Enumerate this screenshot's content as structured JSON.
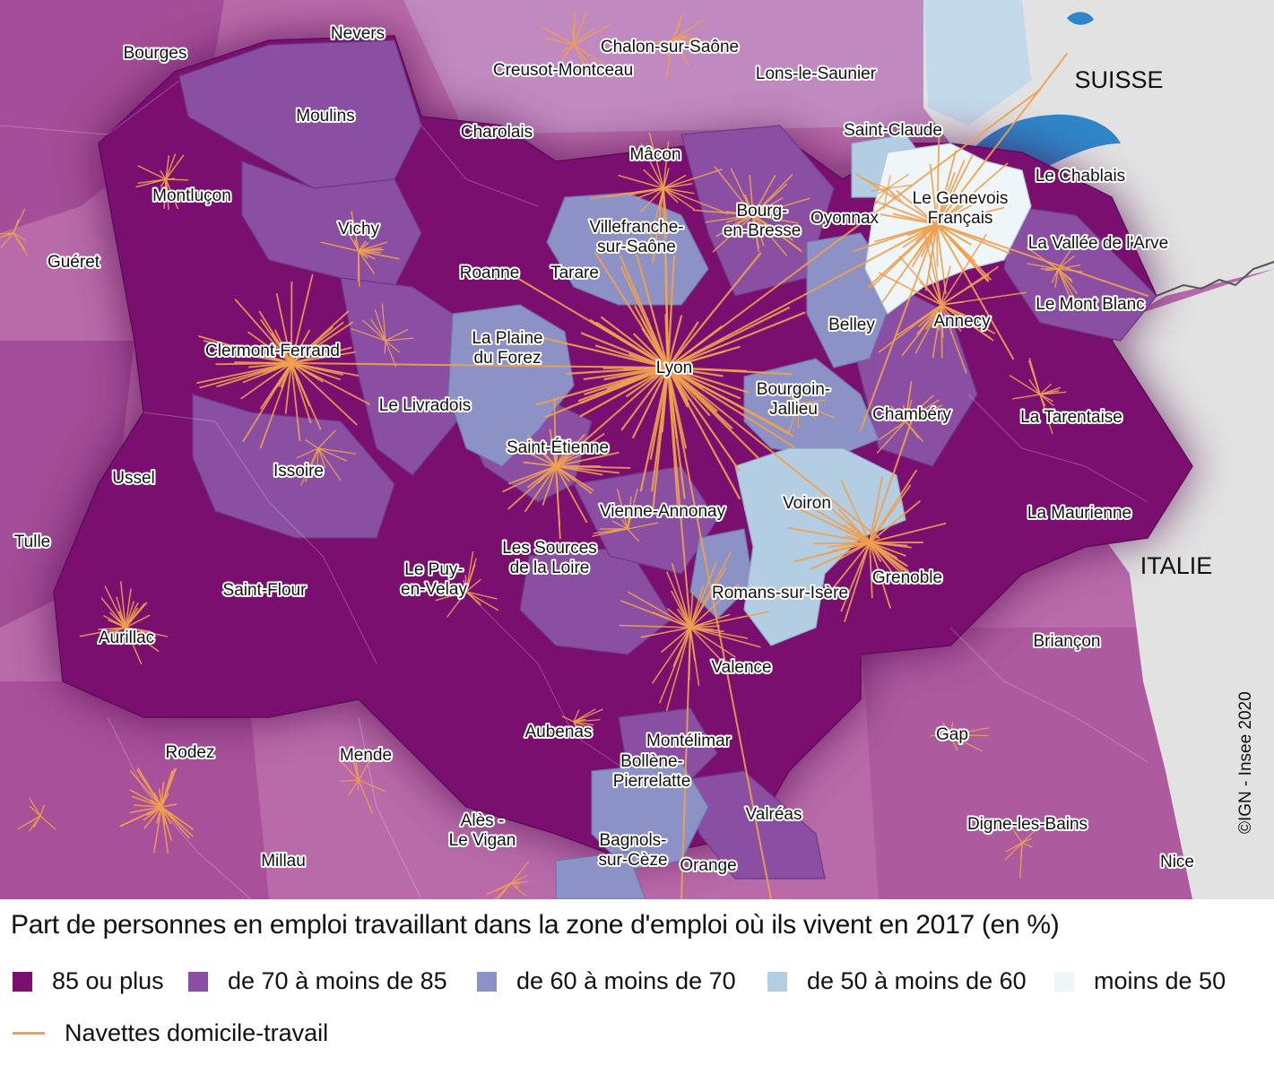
{
  "map": {
    "countries": [
      "SUISSE",
      "ITALIE"
    ],
    "credit": "©IGN - Insee 2020",
    "flow_color": "#f0a050",
    "cities": [
      {
        "name": "Bourges",
        "lines": [
          "Bourges"
        ]
      },
      {
        "name": "Nevers",
        "lines": [
          "Nevers"
        ]
      },
      {
        "name": "Chalon-sur-Saône",
        "lines": [
          "Chalon-sur-Saône"
        ]
      },
      {
        "name": "Creusot-Montceau",
        "lines": [
          "Creusot-Montceau"
        ]
      },
      {
        "name": "Lons-le-Saunier",
        "lines": [
          "Lons-le-Saunier"
        ]
      },
      {
        "name": "Moulins",
        "lines": [
          "Moulins"
        ]
      },
      {
        "name": "Charolais",
        "lines": [
          "Charolais"
        ]
      },
      {
        "name": "Saint-Claude",
        "lines": [
          "Saint-Claude"
        ]
      },
      {
        "name": "Mâcon",
        "lines": [
          "Mâcon"
        ]
      },
      {
        "name": "Le Chablais",
        "lines": [
          "Le Chablais"
        ]
      },
      {
        "name": "Montluçon",
        "lines": [
          "Montluçon"
        ]
      },
      {
        "name": "Bourg-en-Bresse",
        "lines": [
          "Bourg-",
          "en-Bresse"
        ]
      },
      {
        "name": "Oyonnax",
        "lines": [
          "Oyonnax"
        ]
      },
      {
        "name": "Le Genevois Français",
        "lines": [
          "Le Genevois",
          "Français"
        ]
      },
      {
        "name": "Vichy",
        "lines": [
          "Vichy"
        ]
      },
      {
        "name": "Villefranche-sur-Saône",
        "lines": [
          "Villefranche-",
          "sur-Saône"
        ]
      },
      {
        "name": "La Vallée de l'Arve",
        "lines": [
          "La Vallée de l'Arve"
        ]
      },
      {
        "name": "Guéret",
        "lines": [
          "Guéret"
        ]
      },
      {
        "name": "Roanne",
        "lines": [
          "Roanne"
        ]
      },
      {
        "name": "Tarare",
        "lines": [
          "Tarare"
        ]
      },
      {
        "name": "Le Mont Blanc",
        "lines": [
          "Le Mont Blanc"
        ]
      },
      {
        "name": "Belley",
        "lines": [
          "Belley"
        ]
      },
      {
        "name": "Annecy",
        "lines": [
          "Annecy"
        ]
      },
      {
        "name": "Clermont-Ferrand",
        "lines": [
          "Clermont-Ferrand"
        ]
      },
      {
        "name": "La Plaine du Forez",
        "lines": [
          "La Plaine",
          "du Forez"
        ]
      },
      {
        "name": "Lyon",
        "lines": [
          "Lyon"
        ]
      },
      {
        "name": "Bourgoin-Jallieu",
        "lines": [
          "Bourgoin-",
          "Jallieu"
        ]
      },
      {
        "name": "Le Livradois",
        "lines": [
          "Le Livradois"
        ]
      },
      {
        "name": "Chambéry",
        "lines": [
          "Chambéry"
        ]
      },
      {
        "name": "La Tarentaise",
        "lines": [
          "La Tarentaise"
        ]
      },
      {
        "name": "Saint-Étienne",
        "lines": [
          "Saint-Étienne"
        ]
      },
      {
        "name": "Issoire",
        "lines": [
          "Issoire"
        ]
      },
      {
        "name": "Ussel",
        "lines": [
          "Ussel"
        ]
      },
      {
        "name": "Voiron",
        "lines": [
          "Voiron"
        ]
      },
      {
        "name": "Vienne-Annonay",
        "lines": [
          "Vienne-Annonay"
        ]
      },
      {
        "name": "La Maurienne",
        "lines": [
          "La Maurienne"
        ]
      },
      {
        "name": "Tulle",
        "lines": [
          "Tulle"
        ]
      },
      {
        "name": "Les Sources de la Loire",
        "lines": [
          "Les Sources",
          "de la Loire"
        ]
      },
      {
        "name": "Le Puy-en-Velay",
        "lines": [
          "Le Puy-",
          "en-Velay"
        ]
      },
      {
        "name": "Grenoble",
        "lines": [
          "Grenoble"
        ]
      },
      {
        "name": "Saint-Flour",
        "lines": [
          "Saint-Flour"
        ]
      },
      {
        "name": "Romans-sur-Isère",
        "lines": [
          "Romans-sur-Isère"
        ]
      },
      {
        "name": "Aurillac",
        "lines": [
          "Aurillac"
        ]
      },
      {
        "name": "Briançon",
        "lines": [
          "Briançon"
        ]
      },
      {
        "name": "Valence",
        "lines": [
          "Valence"
        ]
      },
      {
        "name": "Aubenas",
        "lines": [
          "Aubenas"
        ]
      },
      {
        "name": "Gap",
        "lines": [
          "Gap"
        ]
      },
      {
        "name": "Montélimar",
        "lines": [
          "Montélimar"
        ]
      },
      {
        "name": "Rodez",
        "lines": [
          "Rodez"
        ]
      },
      {
        "name": "Mende",
        "lines": [
          "Mende"
        ]
      },
      {
        "name": "Bollène-Pierrelatte",
        "lines": [
          "Bollène-",
          "Pierrelatte"
        ]
      },
      {
        "name": "Valréas",
        "lines": [
          "Valréas"
        ]
      },
      {
        "name": "Digne-les-Bains",
        "lines": [
          "Digne-les-Bains"
        ]
      },
      {
        "name": "Alès - Le Vigan",
        "lines": [
          "Alès -",
          "Le Vigan"
        ]
      },
      {
        "name": "Bagnols-sur-Cèze",
        "lines": [
          "Bagnols-",
          "sur-Cèze"
        ]
      },
      {
        "name": "Orange",
        "lines": [
          "Orange"
        ]
      },
      {
        "name": "Millau",
        "lines": [
          "Millau"
        ]
      },
      {
        "name": "Nice",
        "lines": [
          "Nice"
        ]
      }
    ]
  },
  "legend": {
    "title": "Part de personnes en emploi travaillant dans la zone d'emploi où ils vivent en 2017 (en %)",
    "classes": [
      {
        "label": "85 ou plus",
        "color": "#7b0f70"
      },
      {
        "label": "de 70 à moins de 85",
        "color": "#8a4fa3"
      },
      {
        "label": "de 60 à moins de 70",
        "color": "#8d92c6"
      },
      {
        "label": "de 50 à moins de 60",
        "color": "#b3cde3"
      },
      {
        "label": "moins de 50",
        "color": "#eef6fa"
      }
    ],
    "flows_label": "Navettes domicile-travail"
  }
}
